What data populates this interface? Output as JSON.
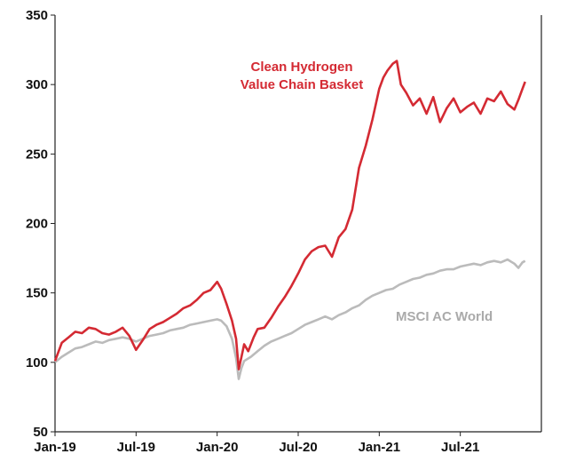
{
  "chart_data": {
    "type": "line",
    "title": "",
    "xlabel": "",
    "ylabel": "",
    "ylim": [
      50,
      350
    ],
    "yticks": [
      50,
      100,
      150,
      200,
      250,
      300,
      350
    ],
    "xticks": [
      {
        "label": "Jan-19",
        "t": 0
      },
      {
        "label": "Jul-19",
        "t": 6
      },
      {
        "label": "Jan-20",
        "t": 12
      },
      {
        "label": "Jul-20",
        "t": 18
      },
      {
        "label": "Jan-21",
        "t": 24
      },
      {
        "label": "Jul-21",
        "t": 30
      }
    ],
    "xlim": [
      0,
      36
    ],
    "grid": false,
    "series": [
      {
        "name": "Clean Hydrogen Value Chain Basket",
        "label_lines": [
          "Clean Hydrogen",
          "Value Chain Basket"
        ],
        "color": "#d42a33",
        "points": [
          [
            0,
            101
          ],
          [
            0.5,
            114
          ],
          [
            1,
            118
          ],
          [
            1.5,
            122
          ],
          [
            2,
            121
          ],
          [
            2.5,
            125
          ],
          [
            3,
            124
          ],
          [
            3.5,
            121
          ],
          [
            4,
            120
          ],
          [
            4.5,
            122
          ],
          [
            5,
            125
          ],
          [
            5.5,
            119
          ],
          [
            6,
            109
          ],
          [
            6.5,
            116
          ],
          [
            7,
            124
          ],
          [
            7.5,
            127
          ],
          [
            8,
            129
          ],
          [
            8.5,
            132
          ],
          [
            9,
            135
          ],
          [
            9.5,
            139
          ],
          [
            10,
            141
          ],
          [
            10.5,
            145
          ],
          [
            11,
            150
          ],
          [
            11.5,
            152
          ],
          [
            12,
            158
          ],
          [
            12.3,
            153
          ],
          [
            12.7,
            142
          ],
          [
            13.1,
            130
          ],
          [
            13.4,
            117
          ],
          [
            13.6,
            95
          ],
          [
            13.8,
            104
          ],
          [
            14,
            113
          ],
          [
            14.3,
            108
          ],
          [
            14.7,
            118
          ],
          [
            15,
            124
          ],
          [
            15.5,
            125
          ],
          [
            16,
            132
          ],
          [
            16.5,
            140
          ],
          [
            17,
            147
          ],
          [
            17.5,
            155
          ],
          [
            18,
            164
          ],
          [
            18.5,
            174
          ],
          [
            19,
            180
          ],
          [
            19.5,
            183
          ],
          [
            20,
            184
          ],
          [
            20.5,
            176
          ],
          [
            21,
            190
          ],
          [
            21.5,
            196
          ],
          [
            22,
            210
          ],
          [
            22.5,
            240
          ],
          [
            23,
            256
          ],
          [
            23.5,
            275
          ],
          [
            24,
            297
          ],
          [
            24.3,
            305
          ],
          [
            24.6,
            310
          ],
          [
            25,
            315
          ],
          [
            25.3,
            317
          ],
          [
            25.6,
            300
          ],
          [
            26,
            294
          ],
          [
            26.5,
            285
          ],
          [
            27,
            290
          ],
          [
            27.5,
            279
          ],
          [
            28,
            291
          ],
          [
            28.5,
            273
          ],
          [
            29,
            283
          ],
          [
            29.5,
            290
          ],
          [
            30,
            280
          ],
          [
            30.5,
            284
          ],
          [
            31,
            287
          ],
          [
            31.5,
            279
          ],
          [
            32,
            290
          ],
          [
            32.5,
            288
          ],
          [
            33,
            295
          ],
          [
            33.5,
            286
          ],
          [
            34,
            282
          ],
          [
            34.3,
            289
          ],
          [
            34.6,
            297
          ],
          [
            34.8,
            302
          ]
        ]
      },
      {
        "name": "MSCI AC World",
        "label_lines": [
          "MSCI AC World"
        ],
        "color": "#bbbbbb",
        "points": [
          [
            0,
            100
          ],
          [
            0.5,
            104
          ],
          [
            1,
            107
          ],
          [
            1.5,
            110
          ],
          [
            2,
            111
          ],
          [
            2.5,
            113
          ],
          [
            3,
            115
          ],
          [
            3.5,
            114
          ],
          [
            4,
            116
          ],
          [
            4.5,
            117
          ],
          [
            5,
            118
          ],
          [
            5.5,
            117
          ],
          [
            6,
            115
          ],
          [
            6.5,
            117
          ],
          [
            7,
            119
          ],
          [
            7.5,
            120
          ],
          [
            8,
            121
          ],
          [
            8.5,
            123
          ],
          [
            9,
            124
          ],
          [
            9.5,
            125
          ],
          [
            10,
            127
          ],
          [
            10.5,
            128
          ],
          [
            11,
            129
          ],
          [
            11.5,
            130
          ],
          [
            12,
            131
          ],
          [
            12.3,
            130
          ],
          [
            12.7,
            126
          ],
          [
            13.1,
            117
          ],
          [
            13.4,
            103
          ],
          [
            13.6,
            88
          ],
          [
            13.8,
            96
          ],
          [
            14,
            101
          ],
          [
            14.5,
            104
          ],
          [
            15,
            108
          ],
          [
            15.5,
            112
          ],
          [
            16,
            115
          ],
          [
            16.5,
            117
          ],
          [
            17,
            119
          ],
          [
            17.5,
            121
          ],
          [
            18,
            124
          ],
          [
            18.5,
            127
          ],
          [
            19,
            129
          ],
          [
            19.5,
            131
          ],
          [
            20,
            133
          ],
          [
            20.5,
            131
          ],
          [
            21,
            134
          ],
          [
            21.5,
            136
          ],
          [
            22,
            139
          ],
          [
            22.5,
            141
          ],
          [
            23,
            145
          ],
          [
            23.5,
            148
          ],
          [
            24,
            150
          ],
          [
            24.5,
            152
          ],
          [
            25,
            153
          ],
          [
            25.5,
            156
          ],
          [
            26,
            158
          ],
          [
            26.5,
            160
          ],
          [
            27,
            161
          ],
          [
            27.5,
            163
          ],
          [
            28,
            164
          ],
          [
            28.5,
            166
          ],
          [
            29,
            167
          ],
          [
            29.5,
            167
          ],
          [
            30,
            169
          ],
          [
            30.5,
            170
          ],
          [
            31,
            171
          ],
          [
            31.5,
            170
          ],
          [
            32,
            172
          ],
          [
            32.5,
            173
          ],
          [
            33,
            172
          ],
          [
            33.5,
            174
          ],
          [
            34,
            171
          ],
          [
            34.3,
            168
          ],
          [
            34.6,
            172
          ],
          [
            34.8,
            173
          ]
        ]
      }
    ]
  }
}
